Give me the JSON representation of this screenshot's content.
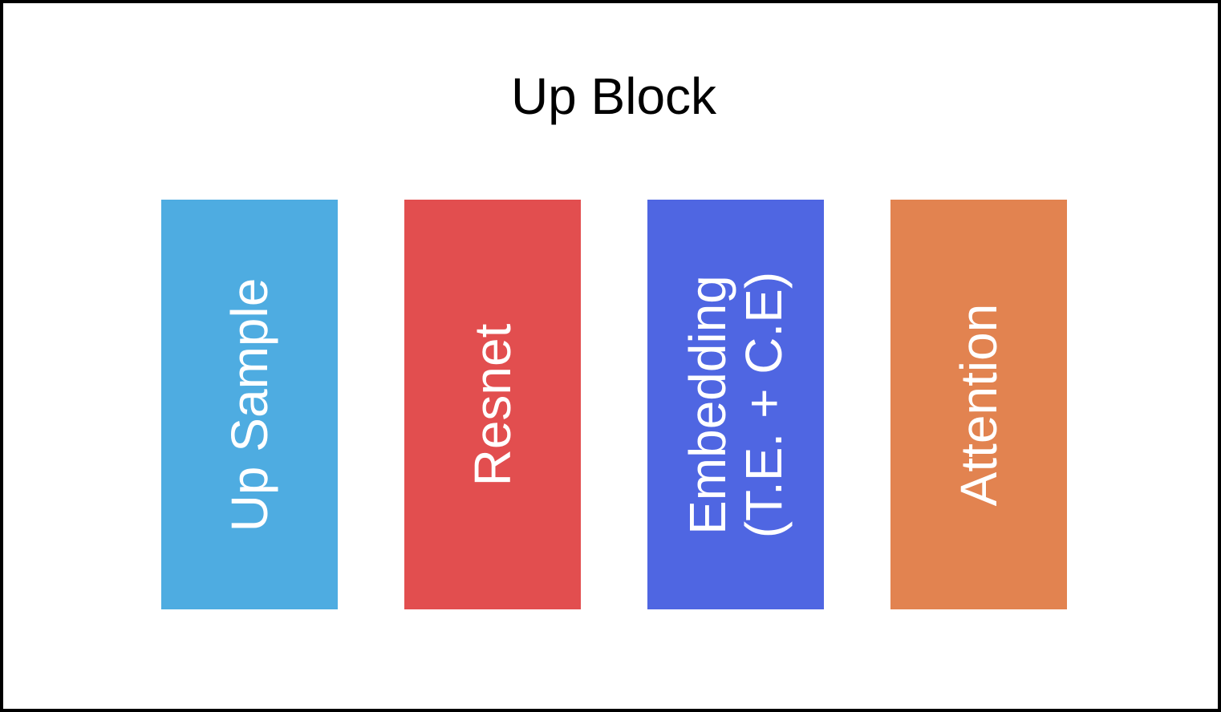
{
  "title": "Up Block",
  "blocks": [
    {
      "label": "Up Sample",
      "color": "#4eace1"
    },
    {
      "label": "Resnet",
      "color": "#e24e4f"
    },
    {
      "label": "Embedding\n(T.E. + C.E)",
      "color": "#4f66e2"
    },
    {
      "label": "Attention",
      "color": "#e28350"
    }
  ]
}
